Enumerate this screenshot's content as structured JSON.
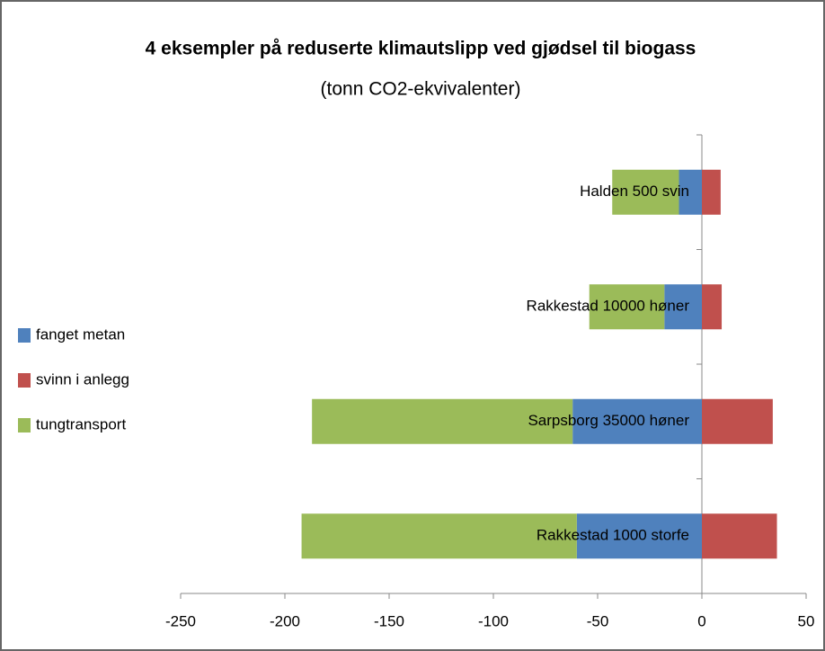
{
  "chart_data": {
    "type": "stacked-barh",
    "title": "4 eksempler på reduserte klimautslipp ved gjødsel til biogass",
    "subtitle": "(tonn CO2-ekvivalenter)",
    "categories": [
      "Halden 500 svin",
      "Rakkestad 10000 høner",
      "Sarpsborg 35000 høner",
      "Rakkestad 1000 storfe"
    ],
    "series": [
      {
        "name": "fanget metan",
        "color": "#4f81bd",
        "values": [
          -11,
          -18,
          -62,
          -60
        ]
      },
      {
        "name": "svinn i anlegg",
        "color": "#c0504d",
        "values": [
          9,
          9.5,
          34,
          36
        ]
      },
      {
        "name": "tungtransport",
        "color": "#9bbb59",
        "values": [
          -32,
          -36,
          -125,
          -132
        ]
      }
    ],
    "xlim": [
      -250,
      50
    ],
    "xticks": [
      -250,
      -200,
      -150,
      -100,
      -50,
      0,
      50
    ],
    "legend": "left"
  }
}
